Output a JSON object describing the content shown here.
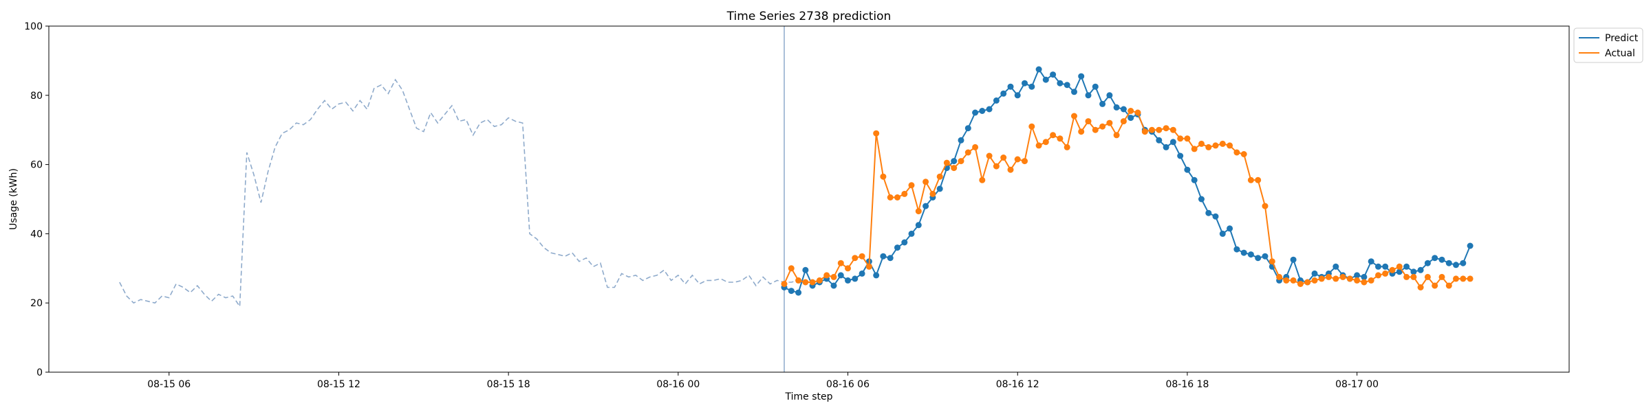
{
  "chart_data": {
    "type": "line",
    "title": "Time Series 2738 prediction",
    "xlabel": "Time step",
    "ylabel": "Usage (kWh)",
    "ylim": [
      0,
      100
    ],
    "yticks": [
      0,
      20,
      40,
      60,
      80,
      100
    ],
    "xlim": [
      "2024-08-15 01:45",
      "2024-08-17 07:30"
    ],
    "xticks": [
      "2024-08-15 06:00",
      "2024-08-15 12:00",
      "2024-08-15 18:00",
      "2024-08-16 00:00",
      "2024-08-16 06:00",
      "2024-08-16 12:00",
      "2024-08-16 18:00",
      "2024-08-17 00:00"
    ],
    "xtick_labels": [
      "08-15 06",
      "08-15 12",
      "08-15 18",
      "08-16 00",
      "08-16 06",
      "08-16 12",
      "08-16 18",
      "08-17 00"
    ],
    "grid": false,
    "legend_position": "top-right, outside plot",
    "forecast_start": "2024-08-16 03:45",
    "interval_minutes": 15,
    "colors": {
      "predict": "#1f77b4",
      "actual": "#ff7f0e",
      "history": "#8eaacb",
      "divider": "#8eaacb"
    },
    "history": {
      "start": "2024-08-15 04:15",
      "values": [
        26.0,
        22.0,
        20.0,
        21.0,
        20.5,
        20.0,
        22.0,
        21.5,
        25.5,
        24.5,
        23.0,
        25.0,
        22.5,
        20.5,
        22.5,
        21.5,
        22.0,
        19.0,
        63.5,
        57.0,
        49.0,
        58.0,
        65.0,
        69.0,
        70.0,
        72.0,
        71.5,
        73.0,
        76.0,
        78.5,
        76.0,
        77.5,
        78.0,
        75.5,
        78.5,
        76.0,
        82.0,
        83.0,
        80.5,
        84.5,
        81.5,
        76.0,
        70.5,
        69.5,
        75.0,
        72.0,
        74.5,
        77.0,
        72.5,
        73.0,
        68.5,
        72.0,
        73.0,
        71.0,
        71.5,
        73.5,
        72.5,
        72.0,
        40.0,
        38.5,
        36.0,
        34.5,
        34.0,
        33.5,
        34.5,
        32.0,
        33.0,
        30.5,
        31.5,
        24.5,
        24.5,
        28.5,
        27.5,
        28.0,
        26.5,
        27.5,
        28.0,
        29.5,
        26.5,
        28.0,
        25.5,
        28.0,
        25.5,
        26.5,
        26.5,
        27.0,
        26.0,
        26.0,
        26.5,
        28.0,
        25.0,
        27.5,
        25.5,
        26.5,
        26.0,
        26.0,
        26.5
      ]
    },
    "series": [
      {
        "name": "Predict",
        "start": "2024-08-16 03:45",
        "values": [
          24.5,
          23.5,
          23.0,
          29.5,
          25.0,
          26.0,
          27.0,
          25.0,
          28.0,
          26.5,
          27.0,
          28.5,
          32.0,
          28.0,
          33.5,
          33.0,
          36.0,
          37.5,
          40.0,
          42.5,
          48.0,
          50.5,
          53.0,
          59.0,
          61.0,
          67.0,
          70.5,
          75.0,
          75.5,
          76.0,
          78.5,
          80.5,
          82.5,
          80.0,
          83.5,
          82.5,
          87.5,
          84.5,
          86.0,
          83.5,
          83.0,
          81.0,
          85.5,
          80.0,
          82.5,
          77.5,
          80.0,
          76.5,
          76.0,
          73.5,
          74.5,
          70.0,
          69.5,
          67.0,
          65.0,
          66.5,
          62.5,
          58.5,
          55.5,
          50.0,
          46.0,
          45.0,
          40.0,
          41.5,
          35.5,
          34.5,
          34.0,
          33.0,
          33.5,
          30.5,
          26.5,
          27.5,
          32.5,
          26.5,
          26.0,
          28.5,
          27.5,
          28.5,
          30.5,
          28.0,
          27.0,
          28.0,
          27.5,
          32.0,
          30.5,
          30.5,
          28.5,
          29.0,
          30.5,
          29.0,
          29.5,
          31.5,
          33.0,
          32.5,
          31.5,
          31.0,
          31.5,
          36.5
        ]
      },
      {
        "name": "Actual",
        "start": "2024-08-16 03:45",
        "values": [
          25.5,
          30.0,
          26.5,
          26.0,
          26.0,
          26.5,
          28.0,
          27.5,
          31.5,
          30.0,
          33.0,
          33.5,
          30.5,
          69.0,
          56.5,
          50.5,
          50.5,
          51.5,
          54.0,
          46.5,
          55.0,
          51.5,
          56.5,
          60.5,
          59.0,
          61.0,
          63.5,
          65.0,
          55.5,
          62.5,
          59.5,
          62.0,
          58.5,
          61.5,
          61.0,
          71.0,
          65.5,
          66.5,
          68.5,
          67.5,
          65.0,
          74.0,
          69.5,
          72.5,
          70.0,
          71.0,
          72.0,
          68.5,
          72.5,
          75.5,
          75.0,
          69.5,
          70.0,
          70.0,
          70.5,
          70.0,
          67.5,
          67.5,
          64.5,
          66.0,
          65.0,
          65.5,
          66.0,
          65.5,
          63.5,
          63.0,
          55.5,
          55.5,
          48.0,
          32.0,
          27.5,
          26.5,
          26.5,
          25.5,
          26.0,
          26.5,
          27.0,
          27.5,
          27.0,
          27.5,
          27.0,
          26.5,
          26.0,
          26.5,
          28.0,
          28.5,
          29.5,
          30.5,
          27.5,
          27.5,
          24.5,
          27.5,
          25.0,
          27.5,
          25.0,
          27.0,
          27.0,
          27.0
        ]
      }
    ]
  }
}
